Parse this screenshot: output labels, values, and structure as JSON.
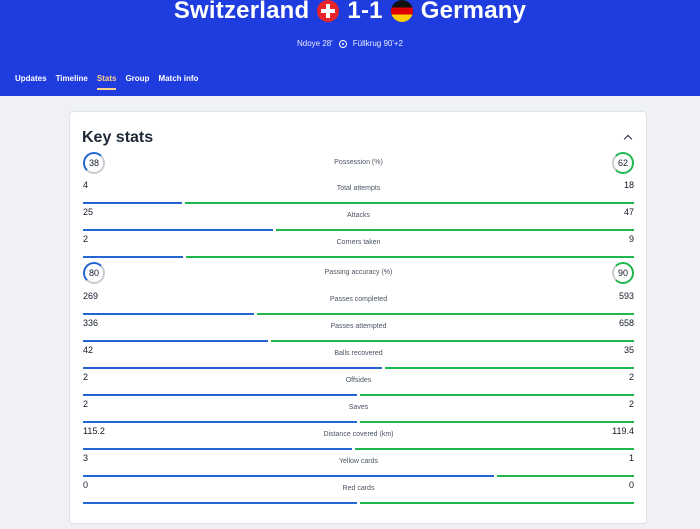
{
  "match": {
    "home_team": "Switzerland",
    "score": "1-1",
    "away_team": "Germany",
    "home_scorer": "Ndoye 28'",
    "away_scorer": "Füllkrug 90'+2"
  },
  "tabs": [
    "Updates",
    "Timeline",
    "Stats",
    "Group",
    "Match info"
  ],
  "active_tab": "Stats",
  "card": {
    "title": "Key stats"
  },
  "stats": [
    {
      "label": "Possession (%)",
      "left": "38",
      "right": "62",
      "left_ratio": 0.38,
      "circle": true
    },
    {
      "label": "Total attempts",
      "left": "4",
      "right": "18",
      "left_ratio": 0.18
    },
    {
      "label": "Attacks",
      "left": "25",
      "right": "47",
      "left_ratio": 0.347
    },
    {
      "label": "Corners taken",
      "left": "2",
      "right": "9",
      "left_ratio": 0.182
    },
    {
      "label": "Passing accuracy (%)",
      "left": "80",
      "right": "90",
      "left_ratio": 0.471,
      "circle": true
    },
    {
      "label": "Passes completed",
      "left": "269",
      "right": "593",
      "left_ratio": 0.312
    },
    {
      "label": "Passes attempted",
      "left": "336",
      "right": "658",
      "left_ratio": 0.338
    },
    {
      "label": "Balls recovered",
      "left": "42",
      "right": "35",
      "left_ratio": 0.545
    },
    {
      "label": "Offsides",
      "left": "2",
      "right": "2",
      "left_ratio": 0.5
    },
    {
      "label": "Saves",
      "left": "2",
      "right": "2",
      "left_ratio": 0.5
    },
    {
      "label": "Distance covered (km)",
      "left": "115.2",
      "right": "119.4",
      "left_ratio": 0.491
    },
    {
      "label": "Yellow cards",
      "left": "3",
      "right": "1",
      "left_ratio": 0.75
    },
    {
      "label": "Red cards",
      "left": "0",
      "right": "0",
      "left_ratio": 0.5
    }
  ]
}
